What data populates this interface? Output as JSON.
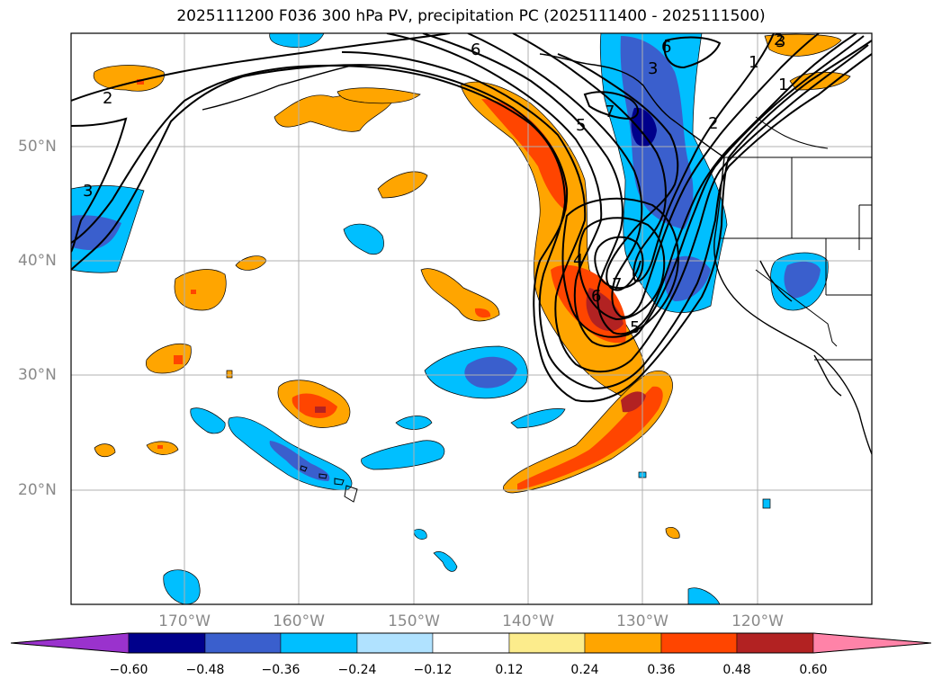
{
  "title": "2025111200 F036 300 hPa PV, precipitation PC (2025111400 - 2025111500)",
  "lat_labels": [
    "50°N",
    "40°N",
    "30°N",
    "20°N"
  ],
  "lon_labels": [
    "170°W",
    "160°W",
    "150°W",
    "140°W",
    "130°W",
    "120°W"
  ],
  "colorbar": {
    "ticks": [
      "−0.60",
      "−0.48",
      "−0.36",
      "−0.24",
      "−0.12",
      "0.12",
      "0.24",
      "0.36",
      "0.48",
      "0.60"
    ],
    "colors": [
      "#9a32cd",
      "#00008b",
      "#3a5fcd",
      "#00bfff",
      "#b0e2ff",
      "#ffffff",
      "#fcec8c",
      "#ffa500",
      "#ff4500",
      "#b22222",
      "#ff83a8"
    ]
  },
  "contour_labels": [
    "2",
    "3",
    "6",
    "6",
    "3",
    "1",
    "2",
    "5",
    "7",
    "4",
    "6",
    "7",
    "5",
    "1",
    "2",
    "3"
  ]
}
